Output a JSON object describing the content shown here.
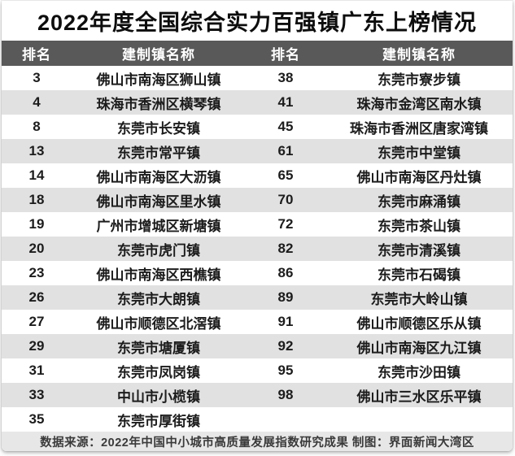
{
  "title": "2022年度全国综合实力百强镇广东上榜情况",
  "footer": {
    "text": "数据来源：2022年中国中小城市高质量发展指数研究成果 制图：界面新闻大湾区"
  },
  "colors": {
    "header_bg": "#595959",
    "header_text": "#ffffff",
    "row_white": "#ffffff",
    "row_alt": "#e1e1e1",
    "footer_bg": "#e7e7e7",
    "title_text": "#0d0d0d",
    "body_text": "#1c1c1c",
    "footer_text": "#3a3a3a"
  },
  "chart_data": {
    "type": "table",
    "title": "2022年度全国综合实力百强镇广东上榜情况",
    "columns": [
      "排名",
      "建制镇名称",
      "排名",
      "建制镇名称"
    ],
    "layout": "two-pane table, alternating white/gray row bands, dark gray header",
    "rows": [
      [
        "3",
        "佛山市南海区狮山镇",
        "38",
        "东莞市寮步镇"
      ],
      [
        "4",
        "珠海市香洲区横琴镇",
        "41",
        "珠海市金湾区南水镇"
      ],
      [
        "8",
        "东莞市长安镇",
        "45",
        "珠海市香洲区唐家湾镇"
      ],
      [
        "13",
        "东莞市常平镇",
        "61",
        "东莞市中堂镇"
      ],
      [
        "14",
        "佛山市南海区大沥镇",
        "65",
        "佛山市南海区丹灶镇"
      ],
      [
        "18",
        "佛山市南海区里水镇",
        "70",
        "东莞市麻涌镇"
      ],
      [
        "19",
        "广州市增城区新塘镇",
        "72",
        "东莞市茶山镇"
      ],
      [
        "20",
        "东莞市虎门镇",
        "82",
        "东莞市清溪镇"
      ],
      [
        "23",
        "佛山市南海区西樵镇",
        "86",
        "东莞市石碣镇"
      ],
      [
        "26",
        "东莞市大朗镇",
        "89",
        "东莞市大岭山镇"
      ],
      [
        "27",
        "佛山市顺德区北滘镇",
        "91",
        "佛山市顺德区乐从镇"
      ],
      [
        "29",
        "东莞市塘厦镇",
        "92",
        "佛山市南海区九江镇"
      ],
      [
        "31",
        "东莞市凤岗镇",
        "95",
        "东莞市沙田镇"
      ],
      [
        "33",
        "中山市小榄镇",
        "98",
        "佛山市三水区乐平镇"
      ],
      [
        "35",
        "东莞市厚街镇",
        "",
        ""
      ]
    ]
  }
}
